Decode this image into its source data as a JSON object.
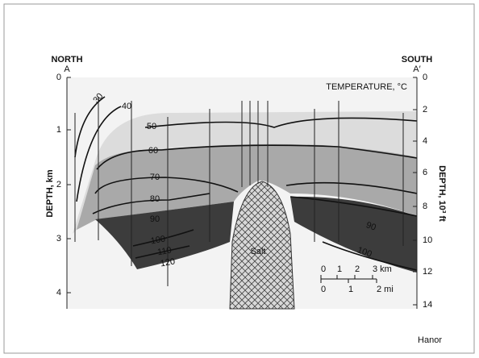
{
  "header": {
    "north": "NORTH",
    "a": "A",
    "south": "SOUTH",
    "a_prime": "A′"
  },
  "title": "TEMPERATURE, °C",
  "left_axis": {
    "label": "DEPTH, km",
    "ticks": [
      "0",
      "1",
      "2",
      "3",
      "4"
    ]
  },
  "right_axis": {
    "label": "DEPTH, 10³ ft",
    "ticks": [
      "0",
      "2",
      "4",
      "6",
      "8",
      "10",
      "12",
      "14"
    ]
  },
  "isotherm_labels": [
    "30",
    "40",
    "50",
    "60",
    "70",
    "80",
    "90",
    "100",
    "110",
    "120",
    "90",
    "100"
  ],
  "salt_label": "Salt",
  "scale": {
    "km": [
      "0",
      "1",
      "2",
      "3 km"
    ],
    "mi": [
      "0",
      "1",
      "2 mi"
    ]
  },
  "credit": "Hanor"
}
